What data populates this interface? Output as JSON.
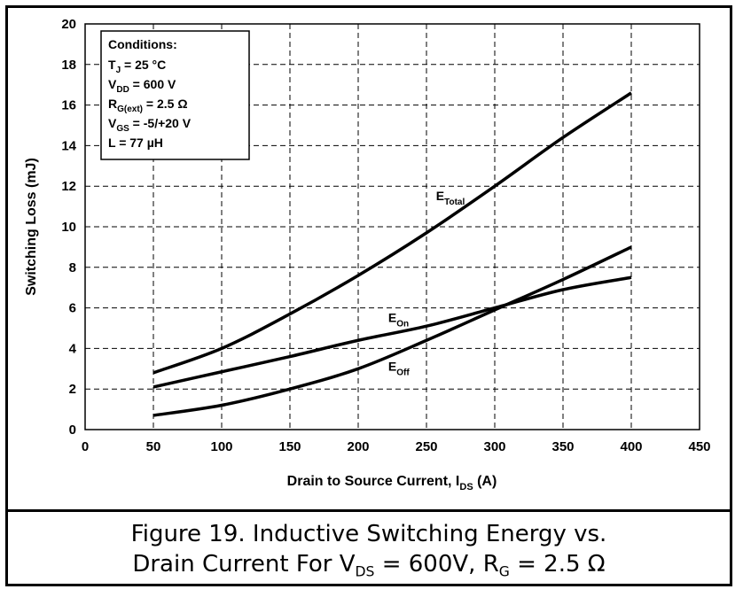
{
  "chart_data": {
    "type": "line",
    "xlabel_main": "Drain to Source Current, I",
    "xlabel_sub": "DS",
    "xlabel_tail": " (A)",
    "ylabel": "Switching Loss (mJ)",
    "xlim": [
      0,
      450
    ],
    "ylim": [
      0,
      20
    ],
    "x_ticks": [
      "0",
      "50",
      "100",
      "150",
      "200",
      "250",
      "300",
      "350",
      "400",
      "450"
    ],
    "y_ticks": [
      "0",
      "2",
      "4",
      "6",
      "8",
      "10",
      "12",
      "14",
      "16",
      "18",
      "20"
    ],
    "grid": true,
    "series": [
      {
        "name": "E",
        "name_sub": "Total",
        "x": [
          50,
          100,
          150,
          200,
          250,
          300,
          350,
          400
        ],
        "y": [
          2.8,
          4.0,
          5.7,
          7.6,
          9.7,
          12.0,
          14.4,
          16.6
        ]
      },
      {
        "name": "E",
        "name_sub": "On",
        "x": [
          50,
          100,
          150,
          200,
          250,
          300,
          350,
          400
        ],
        "y": [
          2.1,
          2.85,
          3.6,
          4.4,
          5.1,
          6.0,
          6.9,
          7.5
        ]
      },
      {
        "name": "E",
        "name_sub": "Off",
        "x": [
          50,
          100,
          150,
          200,
          250,
          300,
          350,
          400
        ],
        "y": [
          0.7,
          1.2,
          2.0,
          3.0,
          4.4,
          5.9,
          7.4,
          9.0
        ]
      }
    ],
    "conditions": {
      "title": "Conditions:",
      "lines": [
        {
          "main": "T",
          "sub": "J",
          "rest": " = 25 °C"
        },
        {
          "main": "V",
          "sub": "DD",
          "rest": " = 600 V"
        },
        {
          "main": "R",
          "sub": "G(ext)",
          "rest": " = 2.5 Ω"
        },
        {
          "main": "V",
          "sub": "GS",
          "rest": " = -5/+20 V"
        },
        {
          "main": "L = 77 µH",
          "sub": "",
          "rest": ""
        }
      ]
    }
  },
  "caption": {
    "line1": "Figure 19. Inductive Switching Energy vs.",
    "line2_a": "Drain Current For V",
    "line2_sub1": "DS",
    "line2_b": " = 600V, R",
    "line2_sub2": "G",
    "line2_c": " = 2.5 Ω"
  }
}
